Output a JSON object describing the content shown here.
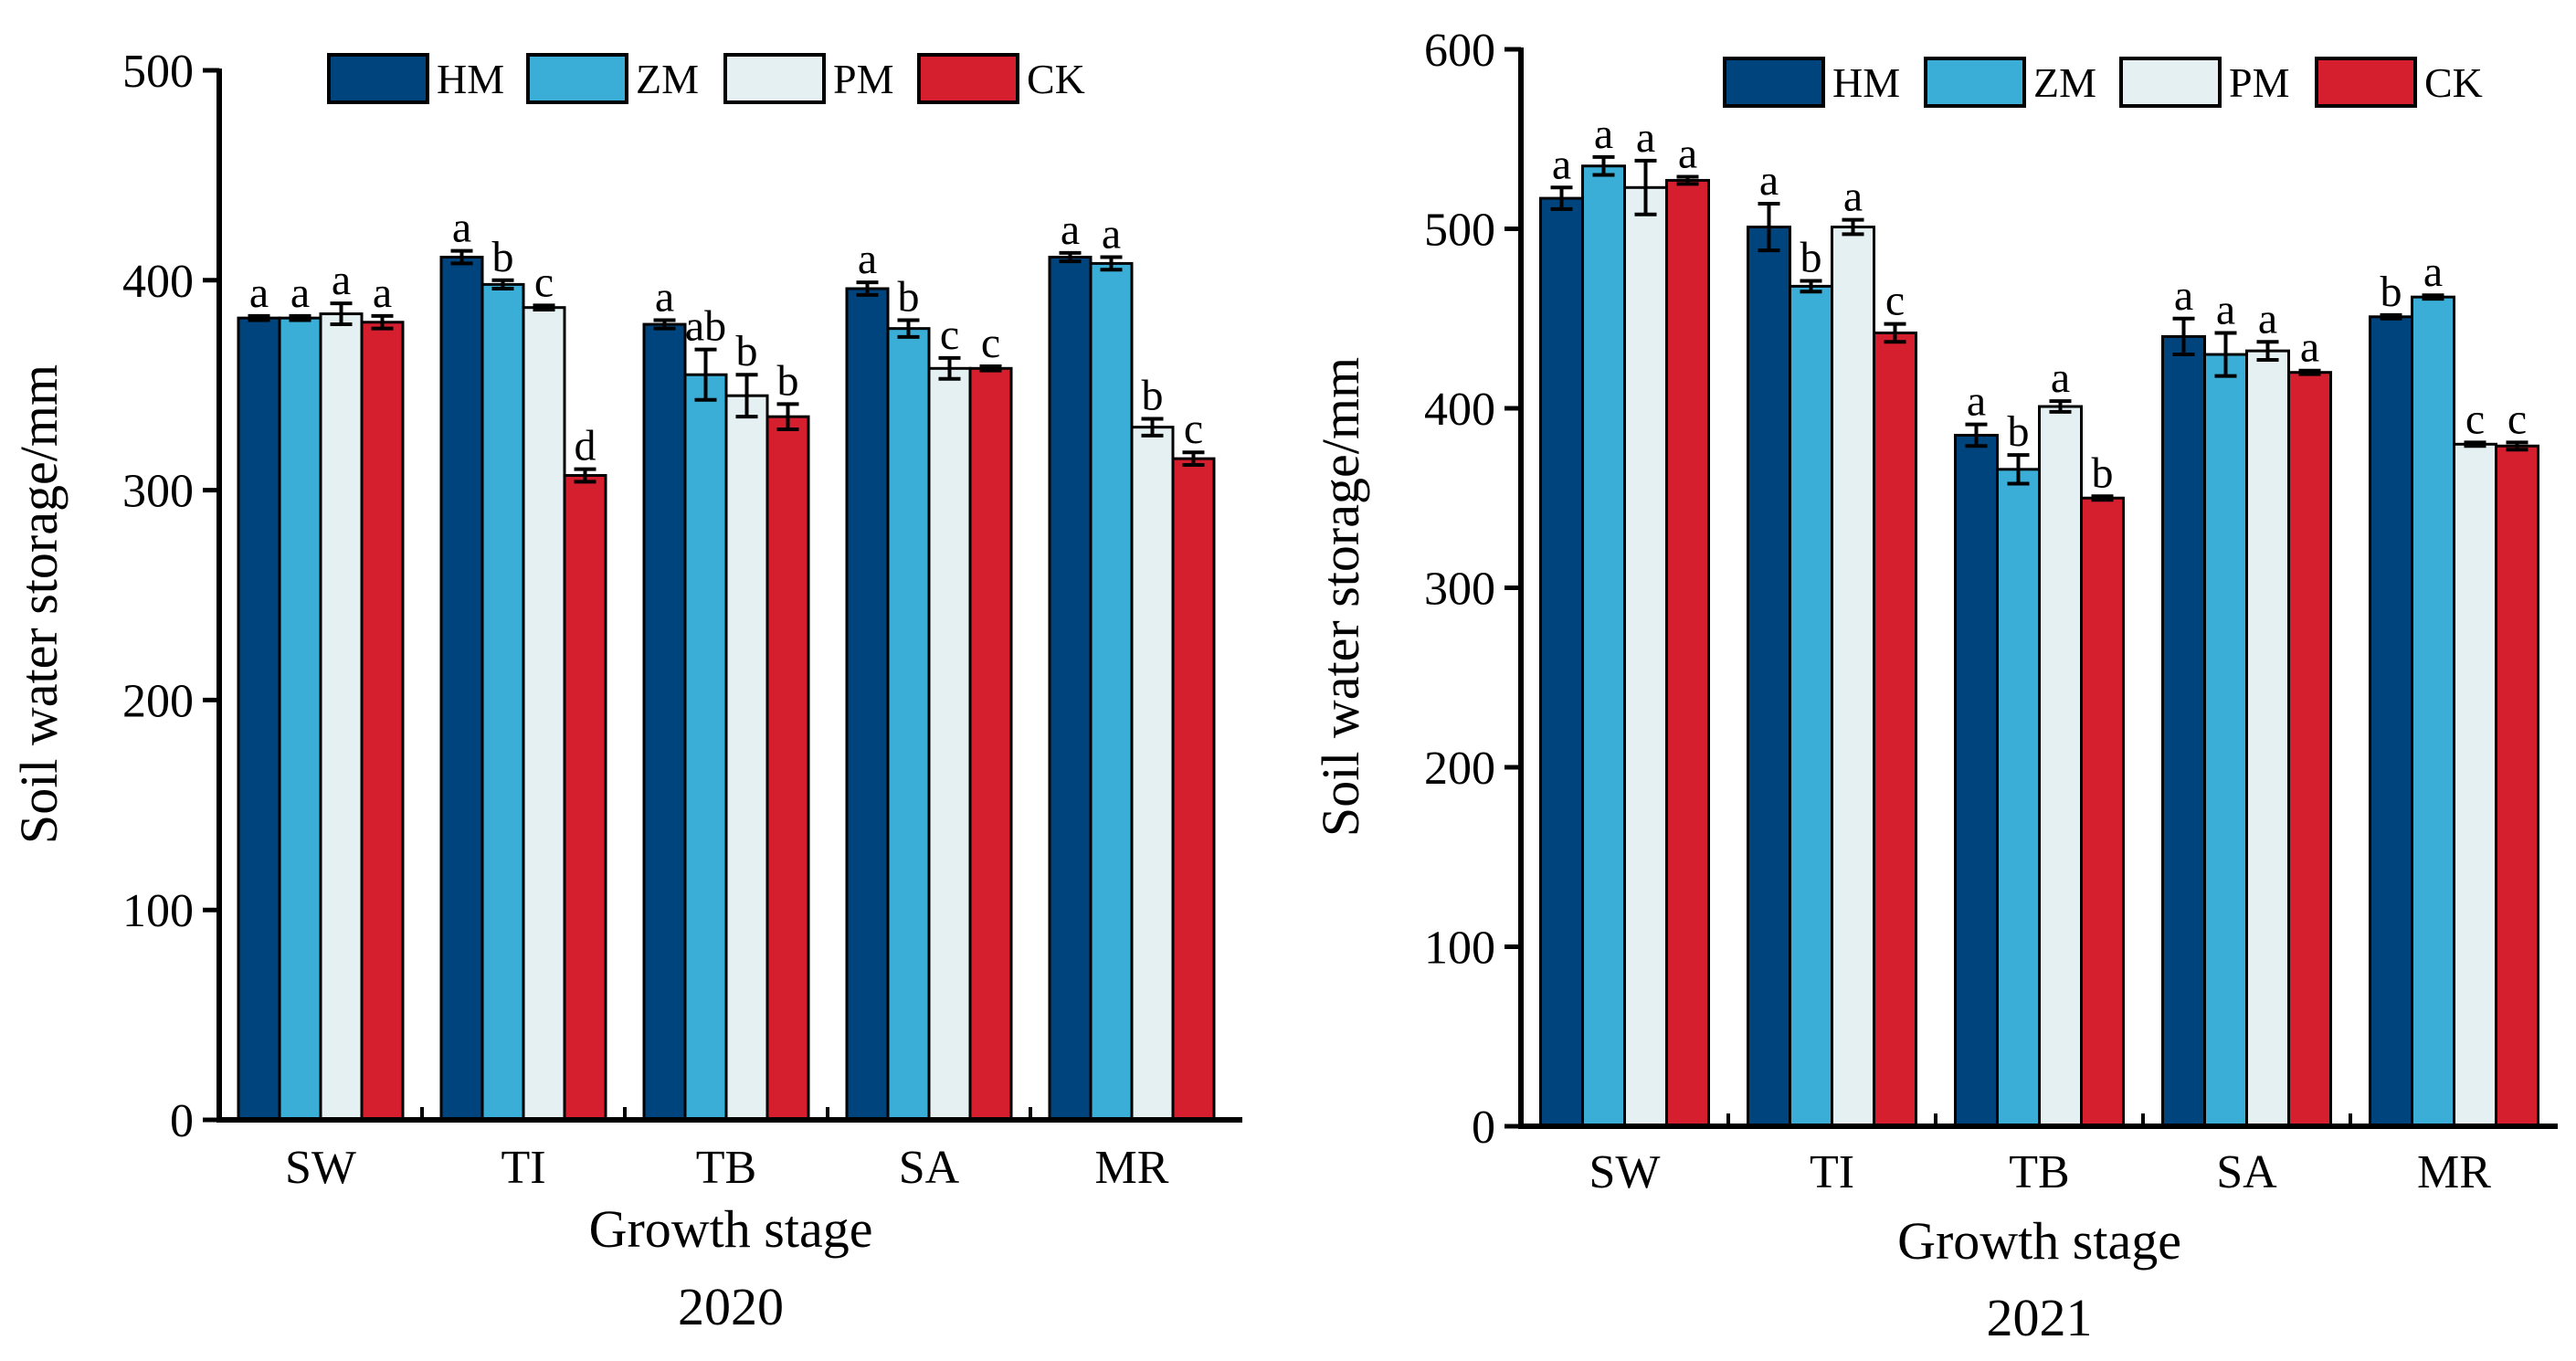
{
  "chart_data": [
    {
      "type": "bar",
      "title": "2020",
      "xlabel": "Growth stage",
      "ylabel": "Soil water storage/mm",
      "ylim": [
        0,
        500
      ],
      "yticks": [
        0,
        100,
        200,
        300,
        400,
        500
      ],
      "categories": [
        "SW",
        "TI",
        "TB",
        "SA",
        "MR"
      ],
      "legend_position": "top",
      "series": [
        {
          "name": "HM",
          "color": "#00447e",
          "values": [
            382,
            411,
            379,
            396,
            411
          ],
          "errors": [
            1,
            3,
            2,
            3,
            2
          ],
          "letters": [
            "a",
            "a",
            "a",
            "a",
            "a"
          ]
        },
        {
          "name": "ZM",
          "color": "#3aaed6",
          "values": [
            382,
            398,
            355,
            377,
            408
          ],
          "errors": [
            1,
            2,
            12,
            4,
            3
          ],
          "letters": [
            "a",
            "b",
            "ab",
            "b",
            "a"
          ]
        },
        {
          "name": "PM",
          "color": "#e5f0f3",
          "values": [
            384,
            387,
            345,
            358,
            330
          ],
          "errors": [
            5,
            1,
            10,
            5,
            4
          ],
          "letters": [
            "a",
            "c",
            "b",
            "c",
            "b"
          ]
        },
        {
          "name": "CK",
          "color": "#d51f2e",
          "values": [
            380,
            307,
            335,
            358,
            315
          ],
          "errors": [
            3,
            3,
            6,
            1,
            3
          ],
          "letters": [
            "a",
            "d",
            "b",
            "c",
            "c"
          ]
        }
      ]
    },
    {
      "type": "bar",
      "title": "2021",
      "xlabel": "Growth stage",
      "ylabel": "Soil water storage/mm",
      "ylim": [
        0,
        600
      ],
      "yticks": [
        0,
        100,
        200,
        300,
        400,
        500,
        600
      ],
      "categories": [
        "SW",
        "TI",
        "TB",
        "SA",
        "MR"
      ],
      "legend_position": "top",
      "series": [
        {
          "name": "HM",
          "color": "#00447e",
          "values": [
            517,
            501,
            385,
            440,
            451
          ],
          "errors": [
            6,
            13,
            6,
            10,
            1
          ],
          "letters": [
            "a",
            "a",
            "a",
            "a",
            "b"
          ]
        },
        {
          "name": "ZM",
          "color": "#3aaed6",
          "values": [
            535,
            468,
            366,
            430,
            462
          ],
          "errors": [
            5,
            3,
            8,
            12,
            1
          ],
          "letters": [
            "a",
            "b",
            "b",
            "a",
            "a"
          ]
        },
        {
          "name": "PM",
          "color": "#e5f0f3",
          "values": [
            523,
            501,
            401,
            432,
            380
          ],
          "errors": [
            15,
            4,
            3,
            5,
            1
          ],
          "letters": [
            "a",
            "a",
            "a",
            "a",
            "c"
          ]
        },
        {
          "name": "CK",
          "color": "#d51f2e",
          "values": [
            527,
            442,
            350,
            420,
            379
          ],
          "errors": [
            2,
            5,
            1,
            1,
            2
          ],
          "letters": [
            "a",
            "c",
            "b",
            "a",
            "c"
          ]
        }
      ]
    }
  ]
}
